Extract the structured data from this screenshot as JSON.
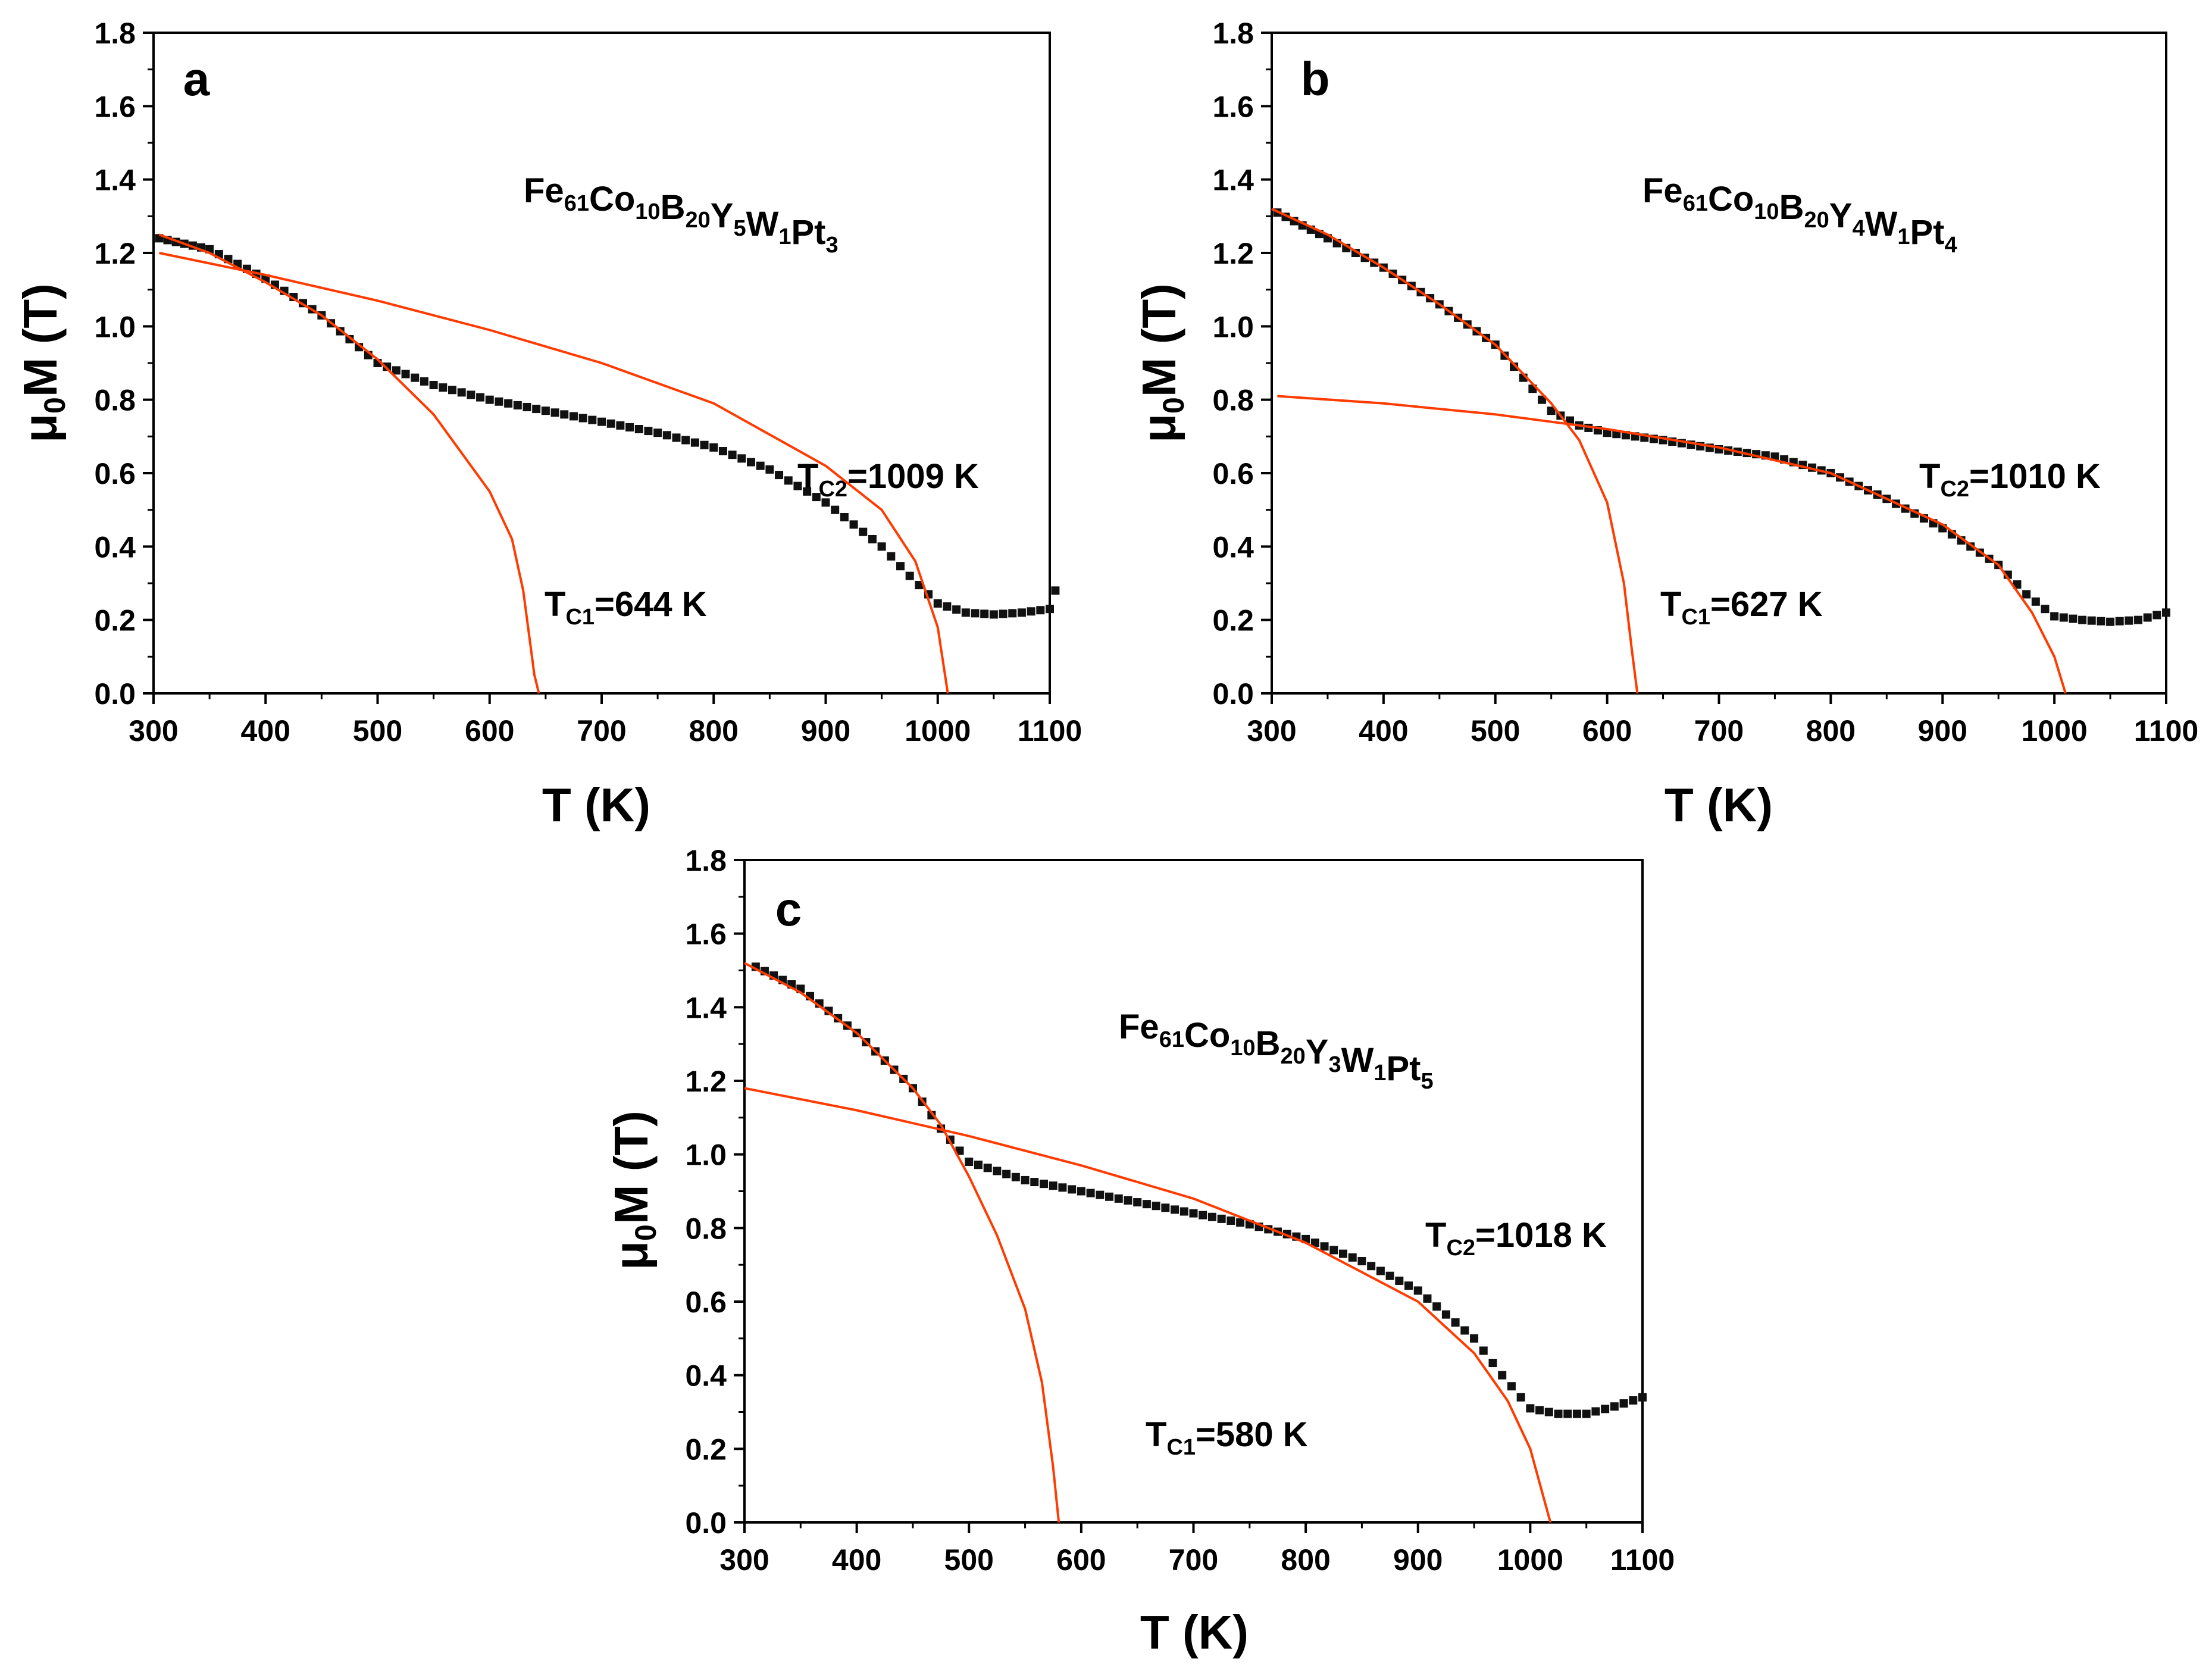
{
  "figure": {
    "fit_color": "#ff3b00",
    "data_color": "#111111"
  },
  "chart_data": [
    {
      "type": "scatter",
      "panel": "a",
      "xlabel": "T (K)",
      "ylabel_prefix": "μ",
      "ylabel_sub": "0",
      "ylabel_suffix": "M (T)",
      "xlim": [
        300,
        1100
      ],
      "ylim": [
        0.0,
        1.8
      ],
      "xticks": [
        300,
        400,
        500,
        600,
        700,
        800,
        900,
        1000,
        1100
      ],
      "yticks": [
        0.0,
        0.2,
        0.4,
        0.6,
        0.8,
        1.0,
        1.2,
        1.4,
        1.6,
        1.8
      ],
      "xtick_labels": [
        "300",
        "400",
        "500",
        "600",
        "700",
        "800",
        "900",
        "1000",
        "1100"
      ],
      "ytick_labels": [
        "0.0",
        "0.2",
        "0.4",
        "0.6",
        "0.8",
        "1.0",
        "1.2",
        "1.4",
        "1.6",
        "1.8"
      ],
      "composition": {
        "parts": [
          [
            "Fe",
            "61"
          ],
          [
            "Co",
            "10"
          ],
          [
            "B",
            "20"
          ],
          [
            "Y",
            "5"
          ],
          [
            "W",
            "1"
          ],
          [
            "Pt",
            "3"
          ]
        ]
      },
      "tc1": {
        "main": "T",
        "sub": "C1",
        "text": "=644 K"
      },
      "tc2": {
        "main": "T",
        "sub": "C2",
        "text": "=1009 K"
      },
      "series": [
        {
          "name": "measured",
          "points": [
            [
              305,
              1.24
            ],
            [
              350,
              1.21
            ],
            [
              400,
              1.13
            ],
            [
              450,
              1.03
            ],
            [
              500,
              0.9
            ],
            [
              550,
              0.84
            ],
            [
              600,
              0.8
            ],
            [
              650,
              0.77
            ],
            [
              700,
              0.74
            ],
            [
              750,
              0.71
            ],
            [
              800,
              0.67
            ],
            [
              850,
              0.61
            ],
            [
              900,
              0.52
            ],
            [
              950,
              0.4
            ],
            [
              975,
              0.32
            ],
            [
              1000,
              0.245
            ],
            [
              1025,
              0.22
            ],
            [
              1050,
              0.215
            ],
            [
              1075,
              0.22
            ],
            [
              1100,
              0.23
            ],
            [
              1105,
              0.28
            ]
          ]
        },
        {
          "name": "fit_TC1",
          "tc": 644,
          "points": [
            [
              305,
              1.25
            ],
            [
              350,
              1.2
            ],
            [
              400,
              1.12
            ],
            [
              450,
              1.03
            ],
            [
              500,
              0.91
            ],
            [
              550,
              0.76
            ],
            [
              600,
              0.55
            ],
            [
              620,
              0.42
            ],
            [
              630,
              0.28
            ],
            [
              640,
              0.05
            ],
            [
              644,
              0.0
            ]
          ]
        },
        {
          "name": "fit_TC2",
          "tc": 1009,
          "points": [
            [
              305,
              1.2
            ],
            [
              400,
              1.14
            ],
            [
              500,
              1.07
            ],
            [
              600,
              0.99
            ],
            [
              700,
              0.9
            ],
            [
              800,
              0.79
            ],
            [
              900,
              0.62
            ],
            [
              950,
              0.5
            ],
            [
              980,
              0.36
            ],
            [
              1000,
              0.18
            ],
            [
              1009,
              0.0
            ]
          ]
        }
      ]
    },
    {
      "type": "scatter",
      "panel": "b",
      "xlabel": "T (K)",
      "ylabel_prefix": "μ",
      "ylabel_sub": "0",
      "ylabel_suffix": "M (T)",
      "xlim": [
        300,
        1100
      ],
      "ylim": [
        0.0,
        1.8
      ],
      "xticks": [
        300,
        400,
        500,
        600,
        700,
        800,
        900,
        1000,
        1100
      ],
      "yticks": [
        0.0,
        0.2,
        0.4,
        0.6,
        0.8,
        1.0,
        1.2,
        1.4,
        1.6,
        1.8
      ],
      "xtick_labels": [
        "300",
        "400",
        "500",
        "600",
        "700",
        "800",
        "900",
        "1000",
        "1100"
      ],
      "ytick_labels": [
        "0.0",
        "0.2",
        "0.4",
        "0.6",
        "0.8",
        "1.0",
        "1.2",
        "1.4",
        "1.6",
        "1.8"
      ],
      "composition": {
        "parts": [
          [
            "Fe",
            "61"
          ],
          [
            "Co",
            "10"
          ],
          [
            "B",
            "20"
          ],
          [
            "Y",
            "4"
          ],
          [
            "W",
            "1"
          ],
          [
            "Pt",
            "4"
          ]
        ]
      },
      "tc1": {
        "main": "T",
        "sub": "C1",
        "text": "=627 K"
      },
      "tc2": {
        "main": "T",
        "sub": "C2",
        "text": "=1010 K"
      },
      "series": [
        {
          "name": "measured",
          "points": [
            [
              305,
              1.31
            ],
            [
              350,
              1.24
            ],
            [
              400,
              1.16
            ],
            [
              450,
              1.06
            ],
            [
              500,
              0.95
            ],
            [
              550,
              0.77
            ],
            [
              575,
              0.73
            ],
            [
              600,
              0.71
            ],
            [
              650,
              0.69
            ],
            [
              700,
              0.665
            ],
            [
              750,
              0.645
            ],
            [
              800,
              0.6
            ],
            [
              850,
              0.53
            ],
            [
              900,
              0.45
            ],
            [
              950,
              0.35
            ],
            [
              975,
              0.27
            ],
            [
              1000,
              0.21
            ],
            [
              1025,
              0.2
            ],
            [
              1050,
              0.195
            ],
            [
              1075,
              0.2
            ],
            [
              1100,
              0.22
            ]
          ]
        },
        {
          "name": "fit_TC1",
          "tc": 627,
          "points": [
            [
              300,
              1.32
            ],
            [
              350,
              1.25
            ],
            [
              400,
              1.16
            ],
            [
              450,
              1.06
            ],
            [
              500,
              0.95
            ],
            [
              550,
              0.79
            ],
            [
              575,
              0.69
            ],
            [
              600,
              0.52
            ],
            [
              615,
              0.3
            ],
            [
              622,
              0.12
            ],
            [
              627,
              0.0
            ]
          ]
        },
        {
          "name": "fit_TC2",
          "tc": 1010,
          "points": [
            [
              305,
              0.81
            ],
            [
              400,
              0.79
            ],
            [
              500,
              0.76
            ],
            [
              600,
              0.72
            ],
            [
              700,
              0.67
            ],
            [
              800,
              0.6
            ],
            [
              900,
              0.46
            ],
            [
              950,
              0.35
            ],
            [
              980,
              0.22
            ],
            [
              1000,
              0.1
            ],
            [
              1010,
              0.0
            ]
          ]
        }
      ]
    },
    {
      "type": "scatter",
      "panel": "c",
      "xlabel": "T (K)",
      "ylabel_prefix": "μ",
      "ylabel_sub": "0",
      "ylabel_suffix": "M (T)",
      "xlim": [
        300,
        1100
      ],
      "ylim": [
        0.0,
        1.8
      ],
      "xticks": [
        300,
        400,
        500,
        600,
        700,
        800,
        900,
        1000,
        1100
      ],
      "yticks": [
        0.0,
        0.2,
        0.4,
        0.6,
        0.8,
        1.0,
        1.2,
        1.4,
        1.6,
        1.8
      ],
      "xtick_labels": [
        "300",
        "400",
        "500",
        "600",
        "700",
        "800",
        "900",
        "1000",
        "1100"
      ],
      "ytick_labels": [
        "0.0",
        "0.2",
        "0.4",
        "0.6",
        "0.8",
        "1.0",
        "1.2",
        "1.4",
        "1.6",
        "1.8"
      ],
      "composition": {
        "parts": [
          [
            "Fe",
            "61"
          ],
          [
            "Co",
            "10"
          ],
          [
            "B",
            "20"
          ],
          [
            "Y",
            "3"
          ],
          [
            "W",
            "1"
          ],
          [
            "Pt",
            "5"
          ]
        ]
      },
      "tc1": {
        "main": "T",
        "sub": "C1",
        "text": "=580 K"
      },
      "tc2": {
        "main": "T",
        "sub": "C2",
        "text": "=1018 K"
      },
      "series": [
        {
          "name": "measured",
          "points": [
            [
              310,
              1.51
            ],
            [
              350,
              1.45
            ],
            [
              400,
              1.33
            ],
            [
              450,
              1.18
            ],
            [
              475,
              1.07
            ],
            [
              500,
              0.98
            ],
            [
              550,
              0.93
            ],
            [
              600,
              0.9
            ],
            [
              650,
              0.87
            ],
            [
              700,
              0.84
            ],
            [
              750,
              0.81
            ],
            [
              800,
              0.77
            ],
            [
              850,
              0.71
            ],
            [
              900,
              0.63
            ],
            [
              950,
              0.5
            ],
            [
              975,
              0.4
            ],
            [
              1000,
              0.31
            ],
            [
              1025,
              0.295
            ],
            [
              1050,
              0.295
            ],
            [
              1075,
              0.315
            ],
            [
              1100,
              0.34
            ]
          ]
        },
        {
          "name": "fit_TC1",
          "tc": 580,
          "points": [
            [
              300,
              1.52
            ],
            [
              350,
              1.44
            ],
            [
              400,
              1.33
            ],
            [
              450,
              1.18
            ],
            [
              475,
              1.08
            ],
            [
              500,
              0.94
            ],
            [
              525,
              0.78
            ],
            [
              550,
              0.58
            ],
            [
              565,
              0.38
            ],
            [
              575,
              0.15
            ],
            [
              580,
              0.0
            ]
          ]
        },
        {
          "name": "fit_TC2",
          "tc": 1018,
          "points": [
            [
              300,
              1.18
            ],
            [
              400,
              1.12
            ],
            [
              500,
              1.05
            ],
            [
              600,
              0.97
            ],
            [
              700,
              0.88
            ],
            [
              800,
              0.76
            ],
            [
              900,
              0.6
            ],
            [
              950,
              0.46
            ],
            [
              980,
              0.33
            ],
            [
              1000,
              0.2
            ],
            [
              1018,
              0.0
            ]
          ]
        }
      ]
    }
  ]
}
